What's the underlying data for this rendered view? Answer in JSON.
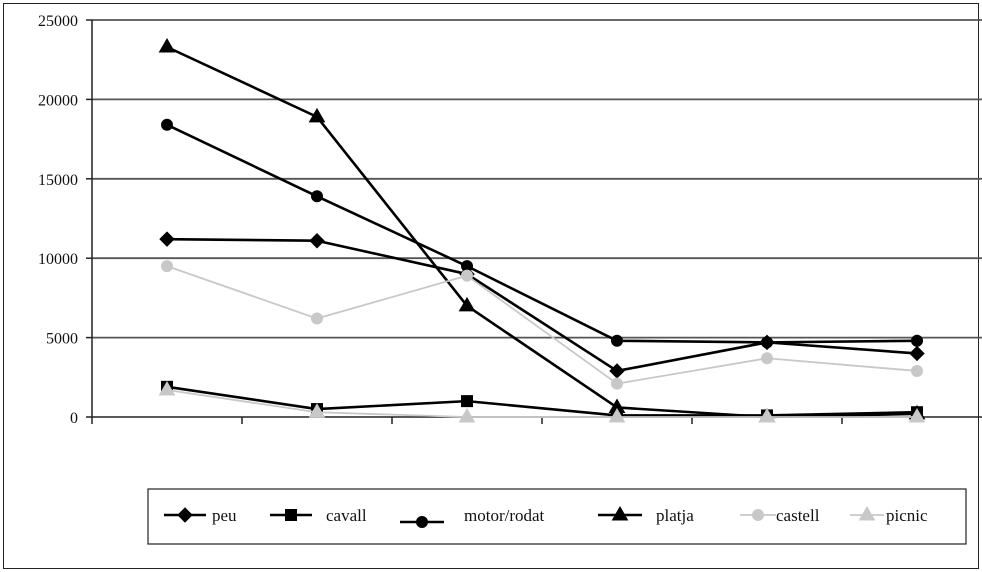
{
  "chart_data": {
    "type": "line",
    "title": "",
    "xlabel": "",
    "ylabel": "",
    "categories": [
      "",
      "",
      "",
      "",
      "",
      ""
    ],
    "ylim": [
      0,
      25000
    ],
    "yticks": [
      0,
      5000,
      10000,
      15000,
      20000,
      25000
    ],
    "grid": true,
    "legend_position": "bottom",
    "series": [
      {
        "name": "peu",
        "marker": "diamond",
        "color": "#000000",
        "values": [
          11200,
          11100,
          9000,
          2900,
          4700,
          4000
        ]
      },
      {
        "name": "cavall",
        "marker": "square",
        "color": "#000000",
        "values": [
          1900,
          500,
          1000,
          100,
          100,
          300
        ]
      },
      {
        "name": "motor/rodat",
        "marker": "circle",
        "color": "#000000",
        "values": [
          18400,
          13900,
          9500,
          4800,
          4700,
          4800
        ]
      },
      {
        "name": "platja",
        "marker": "triangle",
        "color": "#000000",
        "values": [
          23300,
          18900,
          7000,
          600,
          0,
          200
        ]
      },
      {
        "name": "castell",
        "marker": "circle",
        "color": "#c8c8c8",
        "values": [
          9500,
          6200,
          8900,
          2100,
          3700,
          2900
        ]
      },
      {
        "name": "picnic",
        "marker": "triangle",
        "color": "#c8c8c8",
        "values": [
          1700,
          300,
          0,
          0,
          0,
          0
        ]
      }
    ]
  }
}
